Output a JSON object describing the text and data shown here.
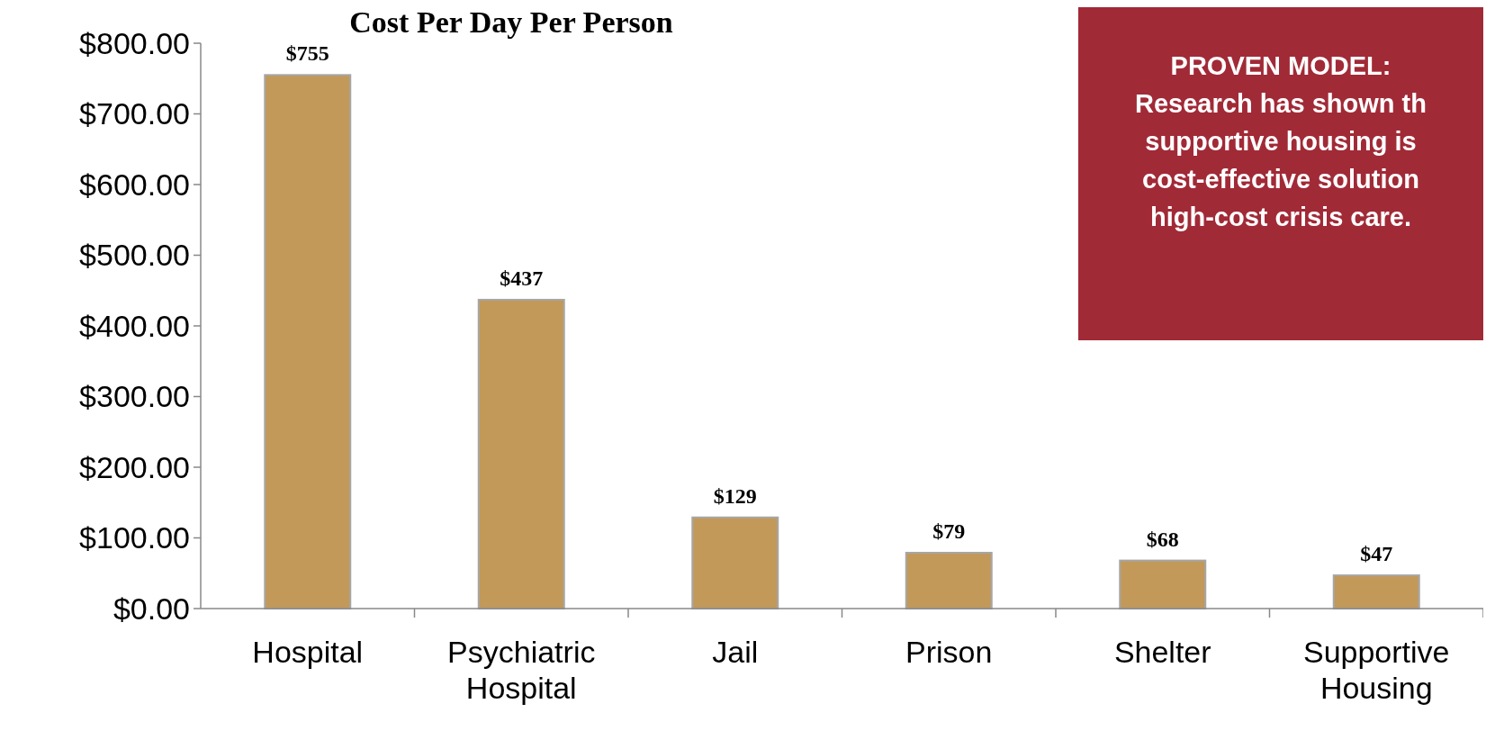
{
  "chart_data": {
    "type": "bar",
    "title": "Cost Per Day Per Person",
    "categories": [
      "Hospital",
      "Psychiatric Hospital",
      "Jail",
      "Prison",
      "Shelter",
      "Supportive Housing"
    ],
    "values": [
      755,
      437,
      129,
      79,
      68,
      47
    ],
    "value_labels": [
      "$755",
      "$437",
      "$129",
      "$79",
      "$68",
      "$47"
    ],
    "color": "#c29959",
    "ylim": [
      0,
      800
    ],
    "yticks": [
      {
        "value": 0,
        "label": "$0.00"
      },
      {
        "value": 100,
        "label": "$100.00"
      },
      {
        "value": 200,
        "label": "$200.00"
      },
      {
        "value": 300,
        "label": "$300.00"
      },
      {
        "value": 400,
        "label": "$400.00"
      },
      {
        "value": 500,
        "label": "$500.00"
      },
      {
        "value": 600,
        "label": "$600.00"
      },
      {
        "value": 700,
        "label": "$700.00"
      },
      {
        "value": 800,
        "label": "$800.00"
      }
    ],
    "annotations": [
      "PROVEN MODEL:\nResearch has shown th\nsupportive housing is\ncost-effective solution\nhigh-cost crisis care."
    ],
    "grid": false
  }
}
